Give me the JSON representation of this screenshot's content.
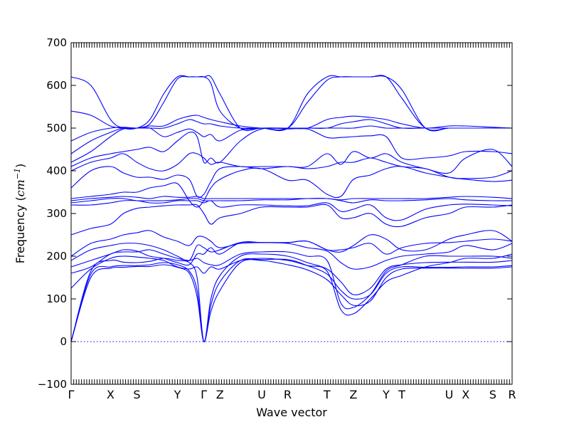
{
  "chart_data": {
    "type": "line",
    "title": "",
    "xlabel": "Wave vector",
    "ylabel": "Frequency",
    "ylabel_unit_base": "cm",
    "ylabel_unit_exp": "−1",
    "ylim": [
      -100,
      700
    ],
    "yticks": [
      -100,
      0,
      100,
      200,
      300,
      400,
      500,
      600,
      700
    ],
    "grid": false,
    "legend": "none",
    "line_color": "#0000ff",
    "xlim": [
      0,
      11.2
    ],
    "kpoints": [
      {
        "label": "Γ",
        "x": 0
      },
      {
        "label": "X",
        "x": 1.0
      },
      {
        "label": "S",
        "x": 1.67
      },
      {
        "label": "Y",
        "x": 2.7
      },
      {
        "label": "Γ",
        "x": 3.37
      },
      {
        "label": "Z",
        "x": 3.78
      },
      {
        "label": "U",
        "x": 4.84
      },
      {
        "label": "R",
        "x": 5.5
      },
      {
        "label": "T",
        "x": 6.5
      },
      {
        "label": "Z",
        "x": 7.17
      },
      {
        "label": "Y",
        "x": 8.0
      },
      {
        "label": "T",
        "x": 8.4
      },
      {
        "label": "U",
        "x": 9.6
      },
      {
        "label": "X",
        "x": 10.02
      },
      {
        "label": "S",
        "x": 10.71
      },
      {
        "label": "R",
        "x": 11.2
      }
    ],
    "bands": [
      [
        0,
        150,
        172,
        174,
        176,
        176,
        180,
        174,
        160,
        105,
        0,
        70,
        120,
        185,
        190,
        180,
        168,
        145,
        110,
        85,
        95,
        150,
        170,
        172,
        172,
        172,
        172,
        175
      ],
      [
        0,
        158,
        175,
        178,
        178,
        180,
        185,
        180,
        165,
        120,
        0,
        85,
        140,
        190,
        192,
        192,
        178,
        158,
        120,
        100,
        110,
        160,
        175,
        174,
        174,
        175,
        175,
        178
      ],
      [
        0,
        165,
        190,
        186,
        185,
        188,
        195,
        190,
        185,
        150,
        0,
        100,
        155,
        200,
        205,
        200,
        185,
        170,
        140,
        110,
        125,
        170,
        180,
        185,
        186,
        186,
        186,
        190
      ],
      [
        125,
        170,
        195,
        200,
        198,
        195,
        190,
        175,
        170,
        175,
        160,
        175,
        170,
        190,
        195,
        190,
        178,
        165,
        75,
        65,
        100,
        140,
        155,
        175,
        185,
        195,
        195,
        205
      ],
      [
        160,
        175,
        205,
        210,
        210,
        215,
        205,
        195,
        190,
        195,
        185,
        180,
        180,
        205,
        210,
        210,
        200,
        190,
        90,
        80,
        110,
        165,
        180,
        200,
        200,
        200,
        200,
        195
      ],
      [
        175,
        190,
        205,
        215,
        212,
        200,
        195,
        185,
        180,
        205,
        205,
        220,
        205,
        232,
        232,
        230,
        220,
        212,
        185,
        170,
        175,
        190,
        200,
        205,
        210,
        225,
        215,
        230
      ],
      [
        190,
        215,
        225,
        230,
        230,
        225,
        215,
        200,
        190,
        225,
        220,
        210,
        215,
        232,
        232,
        232,
        235,
        215,
        215,
        220,
        230,
        205,
        220,
        230,
        232,
        235,
        240,
        235
      ],
      [
        200,
        230,
        240,
        250,
        255,
        260,
        245,
        235,
        225,
        245,
        245,
        235,
        220,
        230,
        232,
        232,
        235,
        215,
        210,
        225,
        250,
        240,
        215,
        215,
        240,
        250,
        260,
        235
      ],
      [
        250,
        265,
        275,
        300,
        312,
        315,
        318,
        320,
        320,
        320,
        300,
        275,
        290,
        300,
        315,
        315,
        315,
        320,
        290,
        290,
        300,
        275,
        270,
        290,
        300,
        315,
        315,
        320
      ],
      [
        320,
        320,
        325,
        330,
        330,
        325,
        325,
        330,
        330,
        330,
        325,
        330,
        315,
        320,
        320,
        318,
        318,
        325,
        305,
        310,
        320,
        290,
        285,
        310,
        320,
        322,
        320,
        318
      ],
      [
        325,
        330,
        335,
        335,
        330,
        330,
        330,
        332,
        335,
        335,
        330,
        330,
        330,
        330,
        332,
        332,
        335,
        335,
        330,
        325,
        332,
        330,
        330,
        332,
        335,
        332,
        330,
        330
      ],
      [
        330,
        335,
        338,
        340,
        338,
        335,
        340,
        338,
        338,
        340,
        335,
        335,
        335,
        335,
        335,
        335,
        335,
        335,
        332,
        335,
        335,
        335,
        335,
        335,
        338,
        340,
        338,
        335
      ],
      [
        335,
        340,
        345,
        350,
        350,
        360,
        365,
        370,
        330,
        315,
        330,
        360,
        380,
        400,
        405,
        378,
        378,
        345,
        340,
        380,
        390,
        405,
        410,
        395,
        385,
        380,
        375,
        378
      ],
      [
        360,
        400,
        410,
        395,
        385,
        385,
        380,
        390,
        380,
        340,
        345,
        375,
        405,
        410,
        405,
        410,
        405,
        410,
        420,
        420,
        430,
        420,
        410,
        405,
        385,
        382,
        385,
        400
      ],
      [
        400,
        420,
        430,
        440,
        420,
        405,
        400,
        415,
        440,
        440,
        430,
        415,
        420,
        410,
        410,
        410,
        410,
        440,
        415,
        445,
        430,
        440,
        420,
        405,
        395,
        430,
        450,
        410
      ],
      [
        410,
        430,
        440,
        445,
        450,
        455,
        445,
        470,
        490,
        480,
        420,
        430,
        420,
        470,
        498,
        498,
        498,
        478,
        478,
        480,
        482,
        480,
        430,
        430,
        435,
        445,
        445,
        440
      ],
      [
        420,
        445,
        480,
        498,
        500,
        500,
        480,
        490,
        498,
        490,
        480,
        485,
        470,
        495,
        500,
        500,
        500,
        500,
        500,
        500,
        505,
        500,
        500,
        500,
        500,
        500,
        500,
        500
      ],
      [
        440,
        470,
        490,
        500,
        500,
        500,
        500,
        510,
        520,
        515,
        510,
        510,
        505,
        500,
        500,
        500,
        500,
        500,
        510,
        515,
        520,
        510,
        500,
        500,
        500,
        500,
        500,
        500
      ],
      [
        470,
        490,
        500,
        502,
        500,
        505,
        505,
        520,
        528,
        530,
        525,
        520,
        515,
        505,
        500,
        500,
        500,
        520,
        525,
        528,
        525,
        520,
        510,
        500,
        505,
        505,
        502,
        500
      ],
      [
        540,
        530,
        505,
        500,
        500,
        510,
        560,
        615,
        620,
        620,
        620,
        605,
        540,
        500,
        500,
        500,
        560,
        612,
        620,
        620,
        620,
        620,
        570,
        500,
        500,
        500,
        500,
        500
      ],
      [
        620,
        600,
        520,
        500,
        500,
        520,
        580,
        620,
        620,
        620,
        620,
        620,
        580,
        500,
        500,
        500,
        580,
        620,
        620,
        620,
        620,
        620,
        590,
        500,
        500,
        500,
        500,
        500
      ]
    ],
    "band_x": [
      0,
      0.5,
      1.0,
      1.33,
      1.67,
      2.0,
      2.35,
      2.7,
      3.0,
      3.2,
      3.37,
      3.55,
      3.78,
      4.3,
      4.84,
      5.5,
      6.0,
      6.5,
      6.85,
      7.17,
      7.6,
      8.0,
      8.4,
      9.0,
      9.6,
      10.02,
      10.71,
      11.2
    ]
  }
}
